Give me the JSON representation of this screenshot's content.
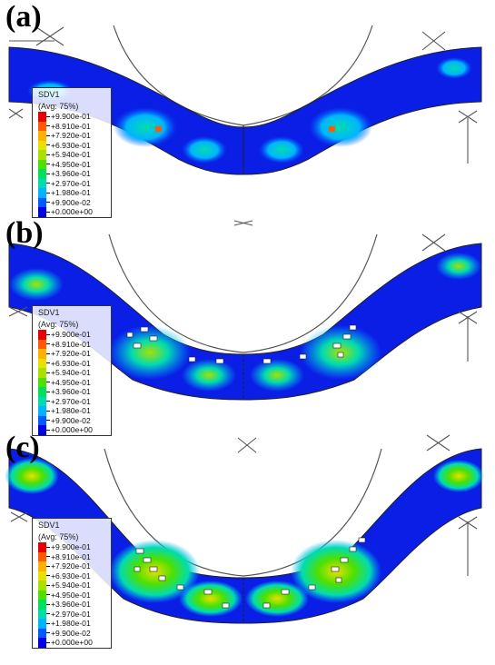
{
  "panels": [
    {
      "label": "(a)"
    },
    {
      "label": "(b)"
    },
    {
      "label": "(c)"
    }
  ],
  "legend": {
    "variable": "SDV1",
    "averaging": "(Avg: 75%)",
    "values": [
      "+9.900e-01",
      "+8.910e-01",
      "+7.920e-01",
      "+6.930e-01",
      "+5.940e-01",
      "+4.950e-01",
      "+3.960e-01",
      "+2.970e-01",
      "+1.980e-01",
      "+9.900e-02",
      "+0.000e+00"
    ],
    "colors": [
      "#e60000",
      "#ff5a00",
      "#ffb000",
      "#e8e000",
      "#a8e000",
      "#4ee000",
      "#00e05a",
      "#00dcb0",
      "#00b4ff",
      "#005aff",
      "#0000e6"
    ]
  }
}
